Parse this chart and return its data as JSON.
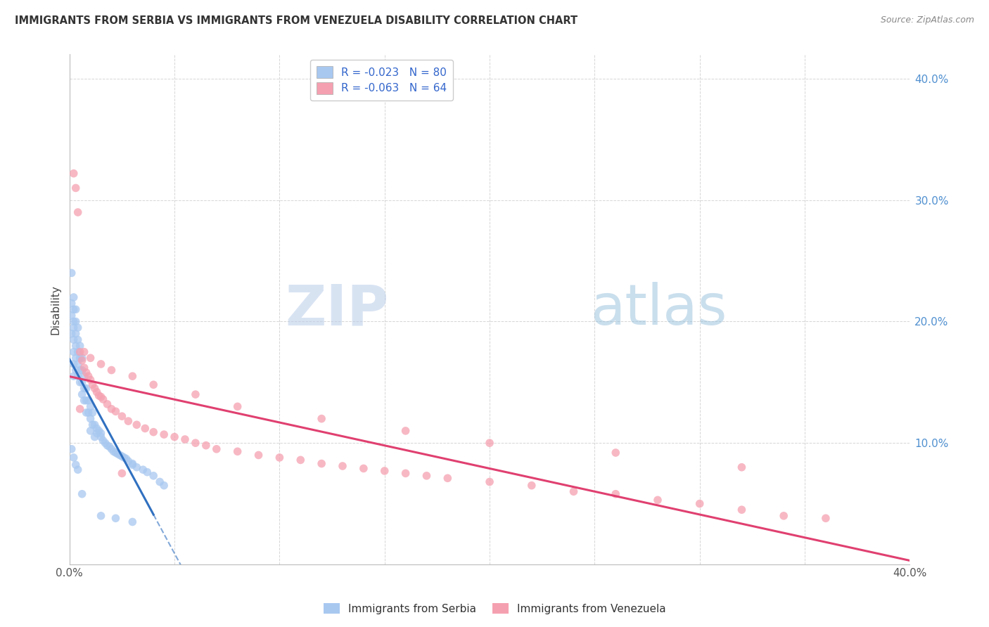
{
  "title": "IMMIGRANTS FROM SERBIA VS IMMIGRANTS FROM VENEZUELA DISABILITY CORRELATION CHART",
  "source": "Source: ZipAtlas.com",
  "ylabel": "Disability",
  "xlim": [
    0.0,
    0.4
  ],
  "ylim": [
    0.0,
    0.42
  ],
  "yticks": [
    0.1,
    0.2,
    0.3,
    0.4
  ],
  "ytick_labels": [
    "10.0%",
    "20.0%",
    "30.0%",
    "40.0%"
  ],
  "serbia_color": "#a8c8f0",
  "venezuela_color": "#f5a0b0",
  "serbia_line_color": "#3070c0",
  "venezuela_line_color": "#e04070",
  "serbia_R": -0.023,
  "serbia_N": 80,
  "venezuela_R": -0.063,
  "venezuela_N": 64,
  "watermark_text": "ZIPatlas",
  "watermark_color": "#c8dff5",
  "serbia_scatter_x": [
    0.001,
    0.001,
    0.001,
    0.001,
    0.002,
    0.002,
    0.002,
    0.002,
    0.002,
    0.002,
    0.002,
    0.002,
    0.003,
    0.003,
    0.003,
    0.003,
    0.003,
    0.003,
    0.004,
    0.004,
    0.004,
    0.004,
    0.004,
    0.005,
    0.005,
    0.005,
    0.005,
    0.006,
    0.006,
    0.006,
    0.006,
    0.007,
    0.007,
    0.007,
    0.008,
    0.008,
    0.008,
    0.009,
    0.009,
    0.01,
    0.01,
    0.01,
    0.011,
    0.011,
    0.012,
    0.012,
    0.013,
    0.013,
    0.014,
    0.015,
    0.015,
    0.016,
    0.017,
    0.018,
    0.019,
    0.02,
    0.021,
    0.022,
    0.023,
    0.024,
    0.025,
    0.026,
    0.027,
    0.028,
    0.03,
    0.03,
    0.032,
    0.035,
    0.037,
    0.04,
    0.043,
    0.045,
    0.015,
    0.022,
    0.03,
    0.001,
    0.002,
    0.003,
    0.004,
    0.006
  ],
  "serbia_scatter_y": [
    0.24,
    0.215,
    0.205,
    0.19,
    0.22,
    0.21,
    0.2,
    0.195,
    0.185,
    0.175,
    0.165,
    0.155,
    0.21,
    0.2,
    0.19,
    0.18,
    0.17,
    0.16,
    0.195,
    0.185,
    0.175,
    0.165,
    0.155,
    0.18,
    0.17,
    0.16,
    0.15,
    0.17,
    0.16,
    0.15,
    0.14,
    0.155,
    0.145,
    0.135,
    0.145,
    0.135,
    0.125,
    0.135,
    0.125,
    0.13,
    0.12,
    0.11,
    0.125,
    0.115,
    0.115,
    0.105,
    0.112,
    0.108,
    0.11,
    0.108,
    0.105,
    0.102,
    0.1,
    0.098,
    0.097,
    0.095,
    0.093,
    0.092,
    0.091,
    0.09,
    0.089,
    0.088,
    0.087,
    0.085,
    0.083,
    0.082,
    0.08,
    0.078,
    0.076,
    0.073,
    0.068,
    0.065,
    0.04,
    0.038,
    0.035,
    0.095,
    0.088,
    0.082,
    0.078,
    0.058
  ],
  "venezuela_scatter_x": [
    0.002,
    0.003,
    0.004,
    0.005,
    0.006,
    0.007,
    0.008,
    0.009,
    0.01,
    0.011,
    0.012,
    0.013,
    0.014,
    0.015,
    0.016,
    0.018,
    0.02,
    0.022,
    0.025,
    0.028,
    0.032,
    0.036,
    0.04,
    0.045,
    0.05,
    0.055,
    0.06,
    0.065,
    0.07,
    0.08,
    0.09,
    0.1,
    0.11,
    0.12,
    0.13,
    0.14,
    0.15,
    0.16,
    0.17,
    0.18,
    0.2,
    0.22,
    0.24,
    0.26,
    0.28,
    0.3,
    0.32,
    0.34,
    0.36,
    0.005,
    0.01,
    0.015,
    0.02,
    0.03,
    0.04,
    0.06,
    0.08,
    0.12,
    0.16,
    0.2,
    0.26,
    0.32,
    0.007,
    0.025
  ],
  "venezuela_scatter_y": [
    0.322,
    0.31,
    0.29,
    0.175,
    0.168,
    0.162,
    0.158,
    0.155,
    0.152,
    0.148,
    0.145,
    0.142,
    0.139,
    0.138,
    0.136,
    0.132,
    0.128,
    0.126,
    0.122,
    0.118,
    0.115,
    0.112,
    0.109,
    0.107,
    0.105,
    0.103,
    0.1,
    0.098,
    0.095,
    0.093,
    0.09,
    0.088,
    0.086,
    0.083,
    0.081,
    0.079,
    0.077,
    0.075,
    0.073,
    0.071,
    0.068,
    0.065,
    0.06,
    0.058,
    0.053,
    0.05,
    0.045,
    0.04,
    0.038,
    0.128,
    0.17,
    0.165,
    0.16,
    0.155,
    0.148,
    0.14,
    0.13,
    0.12,
    0.11,
    0.1,
    0.092,
    0.08,
    0.175,
    0.075
  ]
}
